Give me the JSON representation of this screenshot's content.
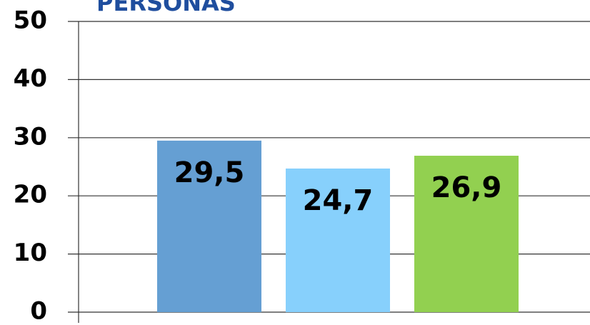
{
  "chart_data": {
    "type": "bar",
    "title": "PERSONAS",
    "categories": [
      null,
      null,
      null
    ],
    "values": [
      29.5,
      24.7,
      26.9
    ],
    "value_labels": [
      "29,5",
      "24,7",
      "26,9"
    ],
    "colors": [
      "#659fd3",
      "#87d0fc",
      "#92d050"
    ],
    "ylim": [
      0,
      50
    ],
    "yticks": [
      0,
      10,
      20,
      30,
      40,
      50
    ],
    "grid": true
  }
}
